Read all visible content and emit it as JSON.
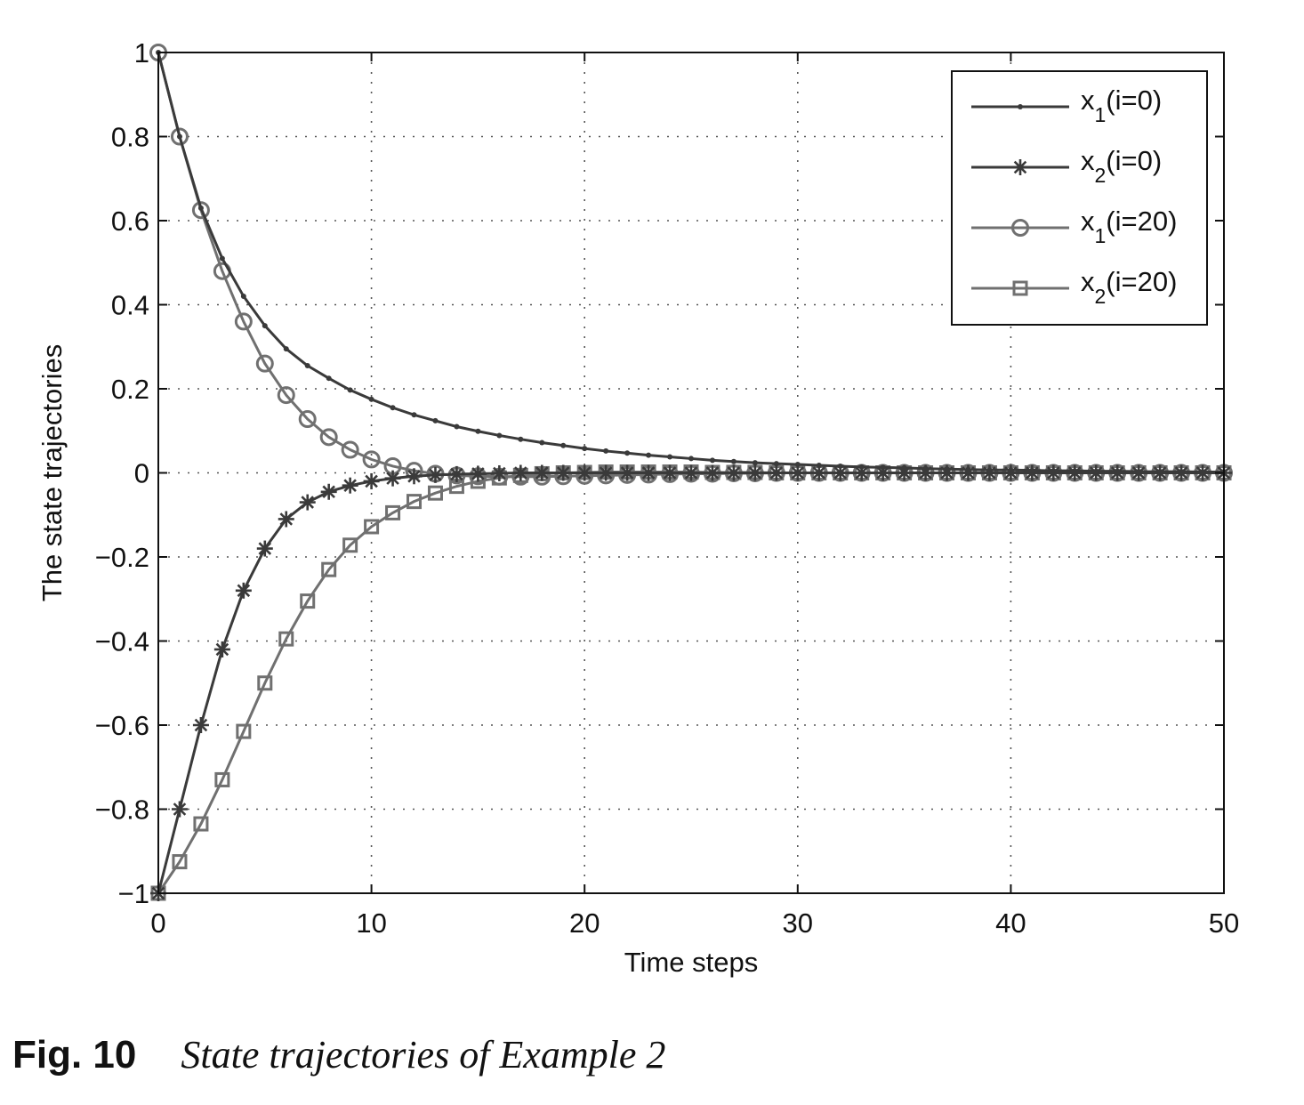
{
  "chart_data": {
    "type": "line",
    "xlabel": "Time steps",
    "ylabel": "The state trajectories",
    "xlim": [
      0,
      50
    ],
    "ylim": [
      -1,
      1
    ],
    "xticks": [
      0,
      10,
      20,
      30,
      40,
      50
    ],
    "xtick_labels": [
      "0",
      "10",
      "20",
      "30",
      "40",
      "50"
    ],
    "yticks": [
      1,
      0.8,
      0.6,
      0.4,
      0.2,
      0,
      -0.2,
      -0.4,
      -0.6,
      -0.8,
      -1
    ],
    "ytick_labels": [
      "1",
      "0.8",
      "0.6",
      "0.4",
      "0.2",
      "0",
      "−0.2",
      "−0.4",
      "−0.6",
      "−0.8",
      "−1"
    ],
    "grid": true,
    "legend_position": "top-right",
    "x": [
      0,
      1,
      2,
      3,
      4,
      5,
      6,
      7,
      8,
      9,
      10,
      11,
      12,
      13,
      14,
      15,
      16,
      17,
      18,
      19,
      20,
      21,
      22,
      23,
      24,
      25,
      26,
      27,
      28,
      29,
      30,
      31,
      32,
      33,
      34,
      35,
      36,
      37,
      38,
      39,
      40,
      41,
      42,
      43,
      44,
      45,
      46,
      47,
      48,
      49,
      50
    ],
    "series": [
      {
        "name": "x1(i=0)",
        "label_main": "x",
        "label_sub": "1",
        "label_rest": "(i=0)",
        "color": "#3a3a3a",
        "marker": "dot",
        "values": [
          1,
          0.8,
          0.63,
          0.51,
          0.42,
          0.35,
          0.295,
          0.255,
          0.225,
          0.197,
          0.175,
          0.155,
          0.138,
          0.124,
          0.11,
          0.099,
          0.089,
          0.08,
          0.072,
          0.065,
          0.058,
          0.052,
          0.047,
          0.042,
          0.038,
          0.034,
          0.03,
          0.027,
          0.024,
          0.022,
          0.02,
          0.018,
          0.016,
          0.014,
          0.013,
          0.012,
          0.01,
          0.009,
          0.008,
          0.007,
          0.007,
          0.006,
          0.005,
          0.005,
          0.004,
          0.004,
          0.003,
          0.003,
          0.003,
          0.002,
          0.002
        ]
      },
      {
        "name": "x2(i=0)",
        "label_main": "x",
        "label_sub": "2",
        "label_rest": "(i=0)",
        "color": "#3a3a3a",
        "marker": "star",
        "values": [
          -1,
          -0.8,
          -0.6,
          -0.42,
          -0.28,
          -0.18,
          -0.11,
          -0.07,
          -0.045,
          -0.03,
          -0.02,
          -0.013,
          -0.008,
          -0.005,
          -0.003,
          -0.002,
          -0.001,
          0,
          0,
          0,
          0,
          0,
          0,
          0,
          0,
          0,
          0,
          0,
          0,
          0,
          0,
          0,
          0,
          0,
          0,
          0,
          0,
          0,
          0,
          0,
          0,
          0,
          0,
          0,
          0,
          0,
          0,
          0,
          0,
          0,
          0
        ]
      },
      {
        "name": "x1(i=20)",
        "label_main": "x",
        "label_sub": "1",
        "label_rest": "(i=20)",
        "color": "#707070",
        "marker": "circle",
        "values": [
          1,
          0.8,
          0.625,
          0.48,
          0.36,
          0.26,
          0.185,
          0.128,
          0.085,
          0.055,
          0.032,
          0.016,
          0.005,
          -0.002,
          -0.006,
          -0.008,
          -0.009,
          -0.009,
          -0.009,
          -0.008,
          -0.007,
          -0.006,
          -0.005,
          -0.004,
          -0.003,
          -0.002,
          -0.002,
          -0.001,
          -0.001,
          0,
          0,
          0,
          0,
          0,
          0,
          0,
          0,
          0,
          0,
          0,
          0,
          0,
          0,
          0,
          0,
          0,
          0,
          0,
          0,
          0,
          0
        ]
      },
      {
        "name": "x2(i=20)",
        "label_main": "x",
        "label_sub": "2",
        "label_rest": "(i=20)",
        "color": "#707070",
        "marker": "square",
        "values": [
          -1,
          -0.925,
          -0.835,
          -0.73,
          -0.615,
          -0.5,
          -0.395,
          -0.305,
          -0.23,
          -0.172,
          -0.128,
          -0.095,
          -0.068,
          -0.048,
          -0.032,
          -0.02,
          -0.012,
          -0.006,
          -0.002,
          0,
          0.001,
          0.002,
          0.002,
          0.002,
          0.002,
          0.002,
          0.001,
          0.001,
          0.001,
          0,
          0,
          0,
          0,
          0,
          0,
          0,
          0,
          0,
          0,
          0,
          0,
          0,
          0,
          0,
          0,
          0,
          0,
          0,
          0,
          0,
          0
        ]
      }
    ]
  },
  "caption": {
    "label": "Fig. 10",
    "text": "State trajectories of Example 2"
  }
}
